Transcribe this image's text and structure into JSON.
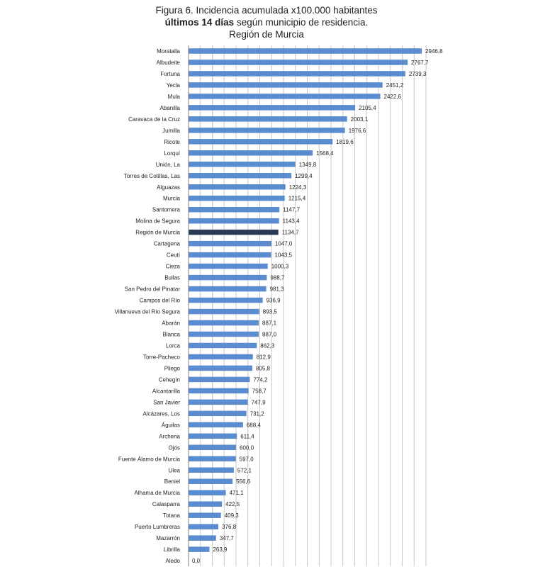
{
  "title": {
    "line1": "Figura 6. Incidencia acumulada x100.000 habitantes",
    "line2_bold": "últimos 14 días",
    "line2_rest": " según municipio de residencia.",
    "line3": "Región de Murcia"
  },
  "chart_data": {
    "type": "bar",
    "orientation": "horizontal",
    "categories": [
      "Moratalla",
      "Albudeite",
      "Fortuna",
      "Yecla",
      "Mula",
      "Abanilla",
      "Caravaca de la Cruz",
      "Jumilla",
      "Ricote",
      "Lorquí",
      "Unión, La",
      "Torres de Cotillas, Las",
      "Alguazas",
      "Murcia",
      "Santomera",
      "Molina de Segura",
      "Región de Murcia",
      "Cartagena",
      "Ceutí",
      "Cieza",
      "Bullas",
      "San Pedro del Pinatar",
      "Campos del Río",
      "Villanueva del Río Segura",
      "Abarán",
      "Blanca",
      "Lorca",
      "Torre-Pacheco",
      "Pliego",
      "Cehegín",
      "Alcantarilla",
      "San Javier",
      "Alcázares, Los",
      "Águilas",
      "Archena",
      "Ojós",
      "Fuente Álamo de Murcia",
      "Ulea",
      "Beniel",
      "Alhama de Murcia",
      "Calasparra",
      "Totana",
      "Puerto Lumbreras",
      "Mazarrón",
      "Librilla",
      "Aledo"
    ],
    "values": [
      2946.8,
      2767.7,
      2739.3,
      2451.2,
      2422.6,
      2105.4,
      2003.1,
      1976.6,
      1819.6,
      1568.4,
      1349.8,
      1299.4,
      1224.3,
      1215.4,
      1147.7,
      1143.4,
      1134.7,
      1047.0,
      1043.5,
      1000.3,
      988.7,
      981.3,
      936.9,
      893.5,
      887.1,
      887.0,
      862.3,
      812.9,
      805.8,
      774.2,
      758.7,
      747.9,
      731.2,
      688.4,
      611.4,
      600.0,
      597.0,
      572.1,
      556.6,
      471.1,
      422.5,
      409.3,
      376.8,
      347.7,
      263.9,
      0.0
    ],
    "labels": [
      "2946,8",
      "2767,7",
      "2739,3",
      "2451,2",
      "2422,6",
      "2105,4",
      "2003,1",
      "1976,6",
      "1819,6",
      "1568,4",
      "1349,8",
      "1299,4",
      "1224,3",
      "1215,4",
      "1147,7",
      "1143,4",
      "1134,7",
      "1047,0",
      "1043,5",
      "1000,3",
      "988,7",
      "981,3",
      "936,9",
      "893,5",
      "887,1",
      "887,0",
      "862,3",
      "812,9",
      "805,8",
      "774,2",
      "758,7",
      "747,9",
      "731,2",
      "688,4",
      "611,4",
      "600,0",
      "597,0",
      "572,1",
      "556,6",
      "471,1",
      "422,5",
      "409,3",
      "376,8",
      "347,7",
      "263,9",
      "0,0"
    ],
    "highlight_category": "Región de Murcia",
    "colors": {
      "bar": "#5b8ccf",
      "highlight": "#2b3a55",
      "grid": "#c8c8c8",
      "axis": "#808080"
    },
    "xlim": [
      0,
      3000
    ],
    "grid": true,
    "xlabel": "",
    "ylabel": ""
  }
}
